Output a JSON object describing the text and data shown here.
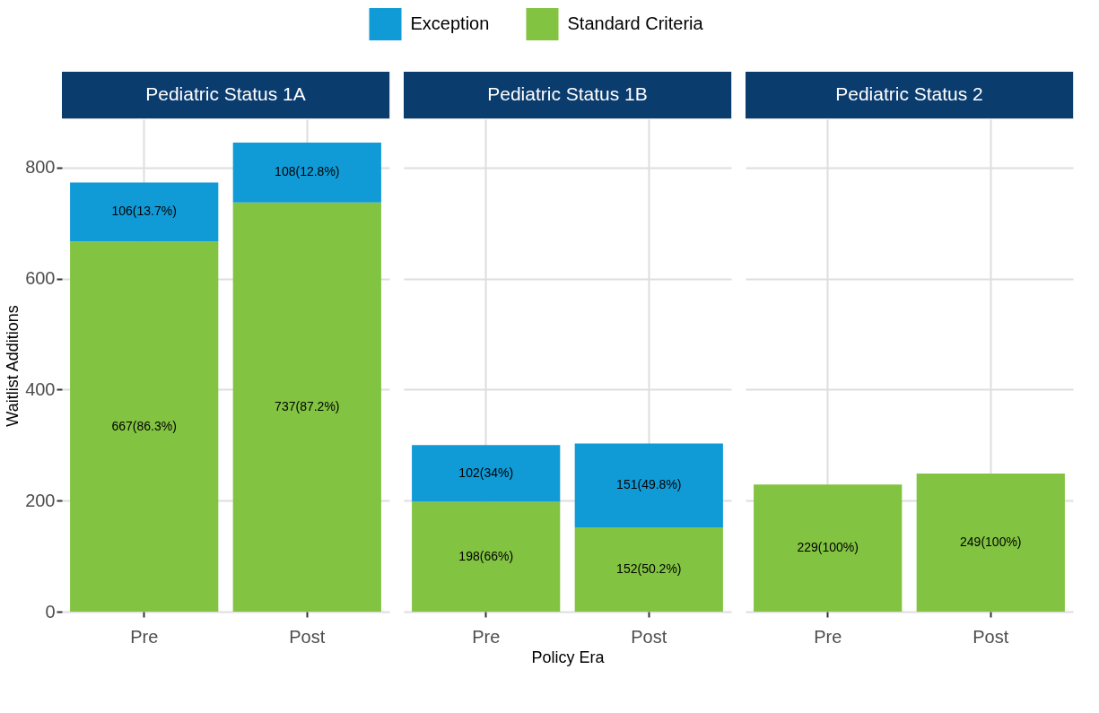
{
  "chart_data": [
    {
      "type": "bar",
      "title": "Pediatric Status 1A",
      "ylabel": "Waitlist Additions",
      "categories": [
        "Pre",
        "Post"
      ],
      "stacked": true,
      "ylim": [
        0,
        887
      ],
      "yticks": [
        0,
        200,
        400,
        600,
        800
      ],
      "grid": true,
      "legend": "top",
      "series": [
        {
          "name": "Standard Criteria",
          "color": "#82c341",
          "values": [
            667,
            737
          ],
          "value_labels": [
            "667(86.3%)",
            "737(87.2%)"
          ]
        },
        {
          "name": "Exception",
          "color": "#109bd7",
          "values": [
            106,
            108
          ],
          "value_labels": [
            "106(13.7%)",
            "108(12.8%)"
          ]
        }
      ]
    },
    {
      "type": "bar",
      "title": "Pediatric Status 1B",
      "xlabel": "Policy Era",
      "categories": [
        "Pre",
        "Post"
      ],
      "stacked": true,
      "ylim": [
        0,
        887
      ],
      "yticks": [
        0,
        200,
        400,
        600,
        800
      ],
      "grid": true,
      "tick_labels": "x",
      "series": [
        {
          "name": "Standard Criteria",
          "color": "#82c341",
          "values": [
            198,
            152
          ],
          "value_labels": [
            "198(66%)",
            "152(50.2%)"
          ]
        },
        {
          "name": "Exception",
          "color": "#109bd7",
          "values": [
            102,
            151
          ],
          "value_labels": [
            "102(34%)",
            "151(49.8%)"
          ]
        }
      ]
    },
    {
      "type": "bar",
      "title": "Pediatric Status 2",
      "categories": [
        "Pre",
        "Post"
      ],
      "stacked": true,
      "ylim": [
        0,
        887
      ],
      "yticks": [
        0,
        200,
        400,
        600,
        800
      ],
      "grid": true,
      "tick_labels": "x",
      "series": [
        {
          "name": "Standard Criteria",
          "color": "#82c341",
          "values": [
            229,
            249
          ],
          "value_labels": [
            "229(100%)",
            "249(100%)"
          ]
        }
      ]
    }
  ]
}
